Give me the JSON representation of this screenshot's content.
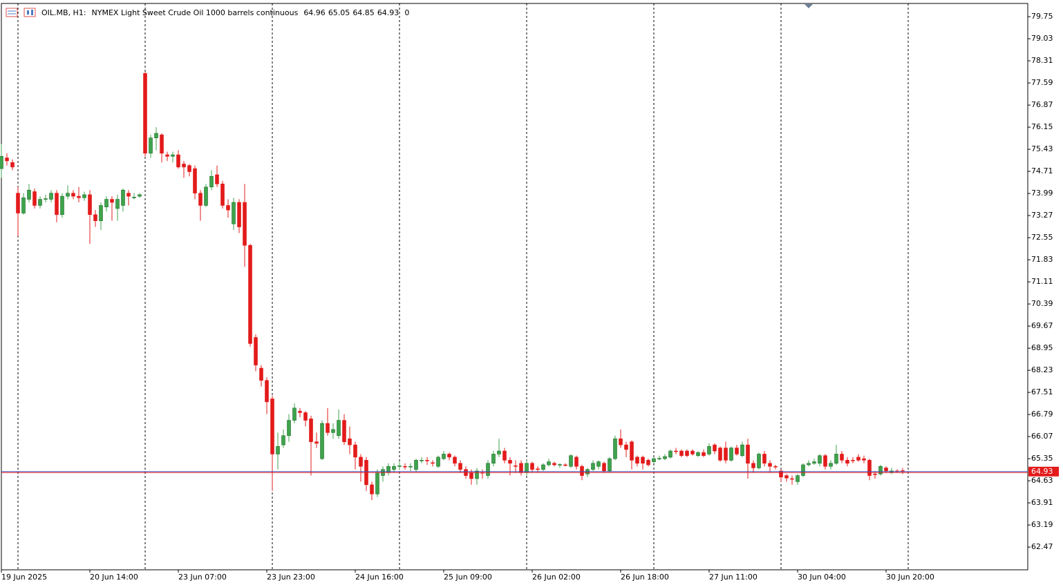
{
  "header": {
    "symbol": "OIL.MB, H1:",
    "description": "NYMEX Light Sweet Crude Oil 1000 barrels continuous",
    "ohlc": [
      64.96,
      65.05,
      64.85,
      64.93
    ],
    "volume": 0
  },
  "chart_data": {
    "type": "candlestick",
    "categories": [
      "19 Jun 2025",
      null,
      null,
      null,
      null,
      null,
      null,
      null,
      null,
      null,
      null,
      null,
      null,
      null,
      null,
      null,
      "20 Jun 14:00",
      null,
      null,
      null,
      null,
      null,
      null,
      null,
      null,
      null,
      null,
      null,
      null,
      null,
      null,
      null,
      "23 Jun 07:00",
      null,
      null,
      null,
      null,
      null,
      null,
      null,
      null,
      null,
      null,
      null,
      null,
      null,
      null,
      null,
      "23 Jun 23:00",
      null,
      null,
      null,
      null,
      null,
      null,
      null,
      null,
      null,
      null,
      null,
      null,
      null,
      null,
      null,
      "24 Jun 16:00",
      null,
      null,
      null,
      null,
      null,
      null,
      null,
      null,
      null,
      null,
      null,
      null,
      null,
      null,
      null,
      "25 Jun 09:00",
      null,
      null,
      null,
      null,
      null,
      null,
      null,
      null,
      null,
      null,
      null,
      null,
      null,
      null,
      null,
      "26 Jun 02:00",
      null,
      null,
      null,
      null,
      null,
      null,
      null,
      null,
      null,
      null,
      null,
      null,
      null,
      null,
      null,
      "26 Jun 18:00",
      null,
      null,
      null,
      null,
      null,
      null,
      null,
      null,
      null,
      null,
      null,
      null,
      null,
      null,
      null,
      "27 Jun 11:00",
      null,
      null,
      null,
      null,
      null,
      null,
      null,
      null,
      null,
      null,
      null,
      null,
      null,
      null,
      null,
      "30 Jun 04:00",
      null,
      null,
      null,
      null,
      null,
      null,
      null,
      null,
      null,
      null,
      null,
      null,
      null,
      null,
      null,
      "30 Jun 20:00",
      null,
      null,
      null
    ],
    "open": [
      74.8,
      75.15,
      75.0,
      74.0,
      73.35,
      73.8,
      74.05,
      73.6,
      73.8,
      73.8,
      74.0,
      73.3,
      73.9,
      74.0,
      73.9,
      73.85,
      73.95,
      73.3,
      73.1,
      73.55,
      73.8,
      73.5,
      73.6,
      74.0,
      73.85,
      73.9,
      77.9,
      75.3,
      75.8,
      75.9,
      75.25,
      75.2,
      75.25,
      74.95,
      74.9,
      74.8,
      74.0,
      73.6,
      74.2,
      74.6,
      74.3,
      73.6,
      73.0,
      73.7,
      73.7,
      72.3,
      69.3,
      68.3,
      67.9,
      67.3,
      65.5,
      65.8,
      66.1,
      66.6,
      66.9,
      66.85,
      66.65,
      65.9,
      65.35,
      66.5,
      66.2,
      66.1,
      66.6,
      66.0,
      65.8,
      65.4,
      65.3,
      64.5,
      64.2,
      64.8,
      64.9,
      65.0,
      65.1,
      65.1,
      65.08,
      65.0,
      65.28,
      65.3,
      65.22,
      65.1,
      65.35,
      65.5,
      65.4,
      65.2,
      65.0,
      64.9,
      64.7,
      64.9,
      64.8,
      65.2,
      65.5,
      65.6,
      65.3,
      65.12,
      65.2,
      64.9,
      65.2,
      65.02,
      65.0,
      65.15,
      65.2,
      65.15,
      65.15,
      65.1,
      65.4,
      65.1,
      64.85,
      65.0,
      65.1,
      65.2,
      64.95,
      65.35,
      66.0,
      65.8,
      65.9,
      65.4,
      65.4,
      65.3,
      65.25,
      65.35,
      65.35,
      65.4,
      65.6,
      65.6,
      65.6,
      65.6,
      65.45,
      65.55,
      65.5,
      65.8,
      65.7,
      65.7,
      65.3,
      65.7,
      65.45,
      65.8,
      65.2,
      65.05,
      65.5,
      65.2,
      65.1,
      64.95,
      64.8,
      64.7,
      64.6,
      64.8,
      65.15,
      65.2,
      65.2,
      65.45,
      65.1,
      65.2,
      65.5,
      65.3,
      65.3,
      65.4,
      65.35,
      65.3,
      64.85,
      64.85,
      65.05,
      64.9,
      64.95,
      64.96
    ],
    "high": [
      75.6,
      75.3,
      75.1,
      74.2,
      74.0,
      74.3,
      74.15,
      73.9,
      73.95,
      74.1,
      74.1,
      74.0,
      74.25,
      74.1,
      74.2,
      74.05,
      74.1,
      73.45,
      73.7,
      73.9,
      73.9,
      73.95,
      74.15,
      74.1,
      74.0,
      74.0,
      77.95,
      75.9,
      76.15,
      75.95,
      75.35,
      75.35,
      75.4,
      75.05,
      74.95,
      74.9,
      74.1,
      74.3,
      74.75,
      74.9,
      74.4,
      73.8,
      73.85,
      73.8,
      74.3,
      72.35,
      69.4,
      68.4,
      68.0,
      67.4,
      66.2,
      66.3,
      66.8,
      67.15,
      67.0,
      66.9,
      66.75,
      66.2,
      66.6,
      67.0,
      66.5,
      66.95,
      66.8,
      66.4,
      65.9,
      65.5,
      65.4,
      64.6,
      65.0,
      65.1,
      65.2,
      65.2,
      65.25,
      65.2,
      65.2,
      65.35,
      65.4,
      65.4,
      65.3,
      65.45,
      65.6,
      65.55,
      65.45,
      65.3,
      65.1,
      65.0,
      65.05,
      65.0,
      65.3,
      65.6,
      66.0,
      65.7,
      65.4,
      65.3,
      65.3,
      65.3,
      65.25,
      65.1,
      65.2,
      65.35,
      65.25,
      65.2,
      65.2,
      65.5,
      65.45,
      65.15,
      65.05,
      65.3,
      65.3,
      65.25,
      65.4,
      66.1,
      66.3,
      65.9,
      65.95,
      65.45,
      65.45,
      65.35,
      65.4,
      65.45,
      65.5,
      65.65,
      65.7,
      65.65,
      65.65,
      65.65,
      65.6,
      65.65,
      65.85,
      65.85,
      65.75,
      65.9,
      65.75,
      65.8,
      65.9,
      66.0,
      65.3,
      65.55,
      65.6,
      65.3,
      65.15,
      65.0,
      64.85,
      64.8,
      64.85,
      65.2,
      65.3,
      65.35,
      65.5,
      65.5,
      65.3,
      65.8,
      65.6,
      65.4,
      65.4,
      65.5,
      65.45,
      65.35,
      64.95,
      65.15,
      65.1,
      65.05,
      65.0,
      65.05
    ],
    "low": [
      74.5,
      74.9,
      74.75,
      72.6,
      73.3,
      73.7,
      73.5,
      73.5,
      73.7,
      73.7,
      73.05,
      73.2,
      73.8,
      73.8,
      73.7,
      73.75,
      72.35,
      72.9,
      72.8,
      73.4,
      73.1,
      73.1,
      73.4,
      73.6,
      73.8,
      73.85,
      75.2,
      75.15,
      75.4,
      75.0,
      75.05,
      75.0,
      74.8,
      74.5,
      74.55,
      73.8,
      73.1,
      73.55,
      74.1,
      74.2,
      73.5,
      73.2,
      72.8,
      72.7,
      71.6,
      69.0,
      68.2,
      67.7,
      66.8,
      64.3,
      65.0,
      65.7,
      65.9,
      66.5,
      66.7,
      66.4,
      64.8,
      65.7,
      65.3,
      66.1,
      66.0,
      66.0,
      65.8,
      65.5,
      65.0,
      64.6,
      64.3,
      64.0,
      64.1,
      64.6,
      64.8,
      64.9,
      65.0,
      65.0,
      64.95,
      64.9,
      65.2,
      65.15,
      65.1,
      65.05,
      65.3,
      65.3,
      65.1,
      64.9,
      64.7,
      64.5,
      64.5,
      64.7,
      64.7,
      65.1,
      65.4,
      65.2,
      64.8,
      64.9,
      64.8,
      64.8,
      64.9,
      64.9,
      64.95,
      65.1,
      65.1,
      65.05,
      65.1,
      65.05,
      65.0,
      64.65,
      64.75,
      64.95,
      65.0,
      64.9,
      64.9,
      65.3,
      65.7,
      65.4,
      65.0,
      65.1,
      65.0,
      65.1,
      65.2,
      65.3,
      65.3,
      65.35,
      65.5,
      65.4,
      65.4,
      65.45,
      65.4,
      65.4,
      65.45,
      65.5,
      65.25,
      65.2,
      65.25,
      65.45,
      65.4,
      64.7,
      64.9,
      65.0,
      65.1,
      64.9,
      65.0,
      64.6,
      64.6,
      64.5,
      64.5,
      64.75,
      65.1,
      65.15,
      65.1,
      65.0,
      65.0,
      65.15,
      65.2,
      65.1,
      65.2,
      65.25,
      65.2,
      64.65,
      64.7,
      64.8,
      64.9,
      64.85,
      64.9,
      64.85
    ],
    "close": [
      75.2,
      75.05,
      74.85,
      73.35,
      73.85,
      74.1,
      73.6,
      73.8,
      73.82,
      74.0,
      73.3,
      73.9,
      74.0,
      73.9,
      73.85,
      73.95,
      73.3,
      73.1,
      73.6,
      73.8,
      73.7,
      73.8,
      74.1,
      73.9,
      73.87,
      73.95,
      75.3,
      75.8,
      75.95,
      75.3,
      75.2,
      75.25,
      74.85,
      74.85,
      74.7,
      74.0,
      73.6,
      74.2,
      74.55,
      74.3,
      73.6,
      73.45,
      73.7,
      72.9,
      72.3,
      69.1,
      68.4,
      67.9,
      67.2,
      65.5,
      65.75,
      66.1,
      66.6,
      67.0,
      66.85,
      66.6,
      65.9,
      65.85,
      66.5,
      66.2,
      66.3,
      66.6,
      65.9,
      65.8,
      65.4,
      65.1,
      64.5,
      64.2,
      64.9,
      65.0,
      65.1,
      65.1,
      65.12,
      65.08,
      65.1,
      65.3,
      65.3,
      65.28,
      65.2,
      65.4,
      65.5,
      65.4,
      65.2,
      65.0,
      64.8,
      64.7,
      64.95,
      64.88,
      65.2,
      65.5,
      65.6,
      65.3,
      65.2,
      65.1,
      64.9,
      65.2,
      65.0,
      65.0,
      65.15,
      65.25,
      65.15,
      65.16,
      65.14,
      65.45,
      65.1,
      64.8,
      65.0,
      65.2,
      65.25,
      64.95,
      65.35,
      66.0,
      65.8,
      65.65,
      65.3,
      65.2,
      65.2,
      65.15,
      65.35,
      65.36,
      65.42,
      65.6,
      65.58,
      65.45,
      65.45,
      65.5,
      65.55,
      65.45,
      65.75,
      65.6,
      65.3,
      65.3,
      65.7,
      65.5,
      65.8,
      65.2,
      65.05,
      65.5,
      65.2,
      65.1,
      65.08,
      64.75,
      64.72,
      64.68,
      64.8,
      65.15,
      65.2,
      65.25,
      65.45,
      65.1,
      65.2,
      65.5,
      65.3,
      65.2,
      65.28,
      65.3,
      65.3,
      64.8,
      64.83,
      65.1,
      64.95,
      64.95,
      64.94,
      64.93
    ],
    "up_color": "#3fa34d",
    "down_color": "#e31b1b",
    "last_price": 64.93,
    "last_price_color": "#e31b1b",
    "ylim": [
      61.73,
      80.18
    ],
    "yticks": [
      79.75,
      79.03,
      78.31,
      77.59,
      76.87,
      76.15,
      75.43,
      74.71,
      73.99,
      73.27,
      72.55,
      71.83,
      71.11,
      70.39,
      69.67,
      68.95,
      68.23,
      67.51,
      66.79,
      66.07,
      65.35,
      64.63,
      63.91,
      63.19,
      62.47
    ]
  }
}
